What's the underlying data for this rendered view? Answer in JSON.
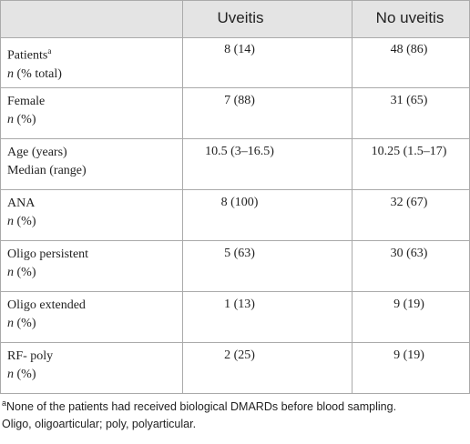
{
  "table": {
    "header": [
      "Uveitis",
      "No uveitis"
    ],
    "rows": [
      {
        "label": "Patients",
        "label_sup": "a",
        "sub_italic": "n",
        "sub": "(% total)",
        "cells": [
          "8 (14)",
          "48 (86)"
        ]
      },
      {
        "label": "Female",
        "sub_italic": "n",
        "sub": "(%)",
        "cells": [
          "7 (88)",
          "31 (65)"
        ]
      },
      {
        "label": "Age (years)",
        "sub": "Median (range)",
        "cells": [
          "10.5 (3–16.5)",
          "10.25 (1.5–17)"
        ]
      },
      {
        "label": "ANA",
        "sub_italic": "n",
        "sub": "(%)",
        "cells": [
          "8 (100)",
          "32 (67)"
        ]
      },
      {
        "label": "Oligo persistent",
        "sub_italic": "n",
        "sub": "(%)",
        "cells": [
          "5 (63)",
          "30 (63)"
        ]
      },
      {
        "label": "Oligo extended",
        "sub_italic": "n",
        "sub": "(%)",
        "cells": [
          "1 (13)",
          "9 (19)"
        ]
      },
      {
        "label": "RF- poly",
        "sub_italic": "n",
        "sub": "(%)",
        "cells": [
          "2 (25)",
          "9 (19)"
        ]
      }
    ]
  },
  "footnote": {
    "sup": "a",
    "line1": "None of the patients had received biological DMARDs before blood sampling.",
    "line2": "Oligo, oligoarticular; poly, polyarticular."
  }
}
